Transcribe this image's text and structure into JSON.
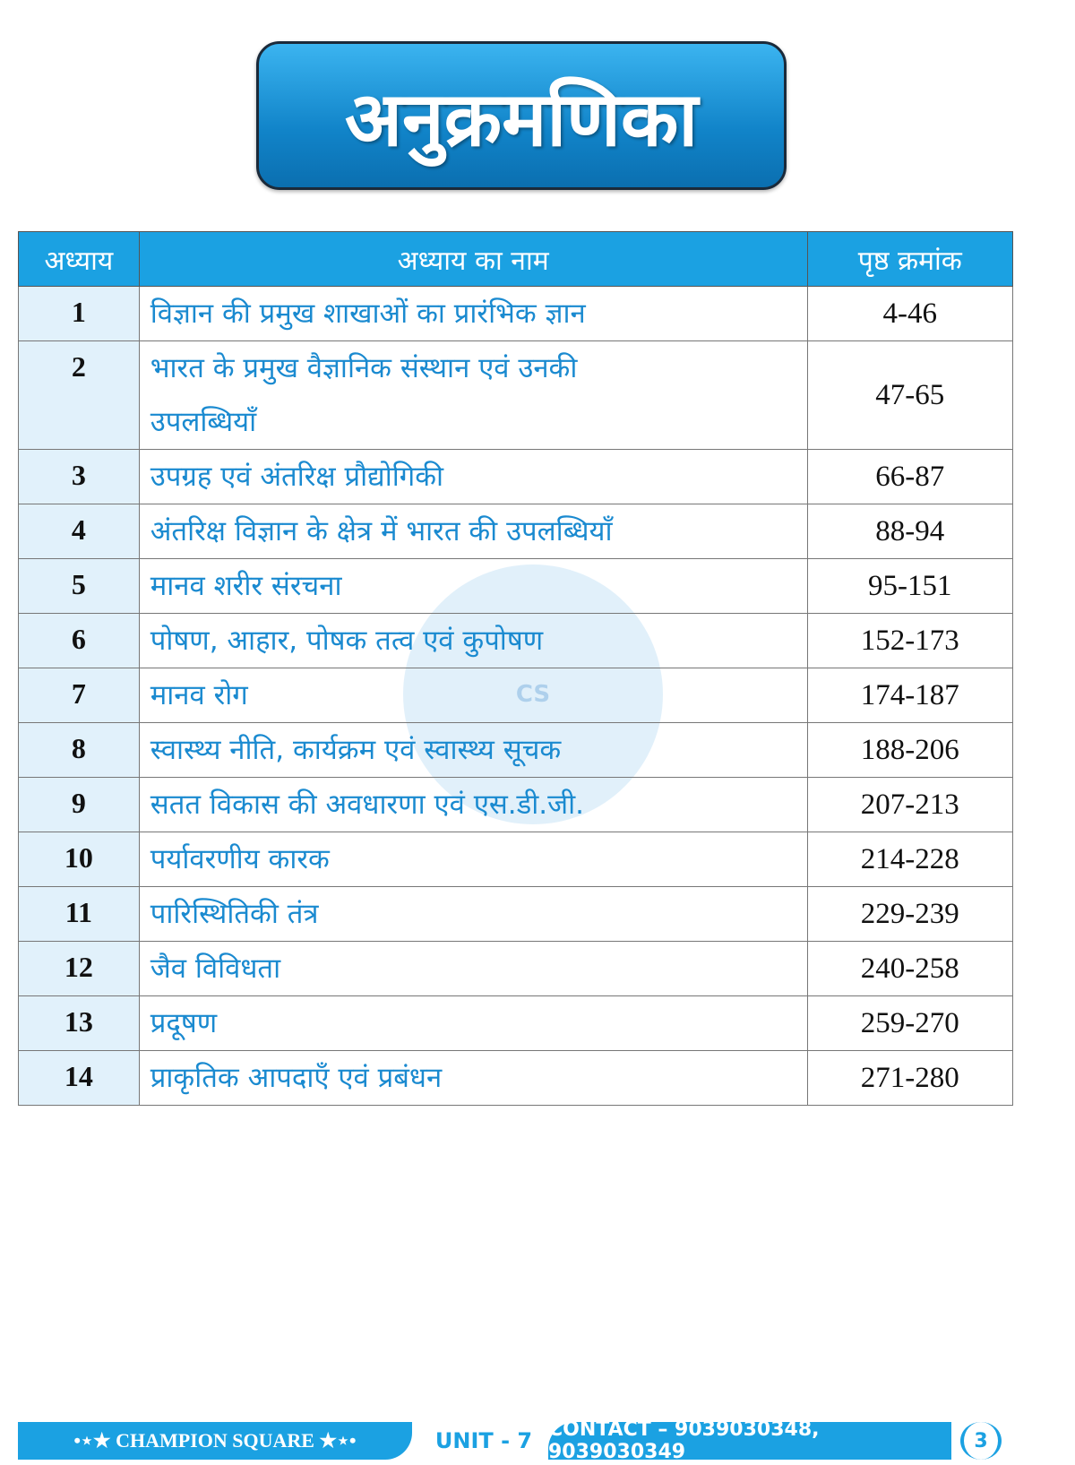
{
  "title": "अनुक्रमणिका",
  "table": {
    "headers": [
      "अध्याय",
      "अध्याय का नाम",
      "पृष्ठ क्रमांक"
    ],
    "rows": [
      {
        "chapter": "1",
        "name": "विज्ञान की प्रमुख शाखाओं का प्रारंभिक ज्ञान",
        "pages": "4-46"
      },
      {
        "chapter": "2",
        "name": "भारत के प्रमुख वैज्ञानिक संस्थान एवं उनकी उपलब्धियाँ",
        "pages": "47-65"
      },
      {
        "chapter": "3",
        "name": "उपग्रह एवं अंतरिक्ष प्रौद्योगिकी",
        "pages": "66-87"
      },
      {
        "chapter": "4",
        "name": "अंतरिक्ष विज्ञान के क्षेत्र में भारत की उपलब्धियाँ",
        "pages": "88-94"
      },
      {
        "chapter": "5",
        "name": "मानव शरीर संरचना",
        "pages": "95-151"
      },
      {
        "chapter": "6",
        "name": "पोषण, आहार, पोषक तत्व एवं कुपोषण",
        "pages": "152-173"
      },
      {
        "chapter": "7",
        "name": "मानव रोग",
        "pages": "174-187"
      },
      {
        "chapter": "8",
        "name": "स्वास्थ्य नीति, कार्यक्रम एवं स्वास्थ्य सूचक",
        "pages": "188-206"
      },
      {
        "chapter": "9",
        "name": "सतत विकास की अवधारणा एवं एस.डी.जी.",
        "pages": "207-213"
      },
      {
        "chapter": "10",
        "name": "पर्यावरणीय कारक",
        "pages": "214-228"
      },
      {
        "chapter": "11",
        "name": "पारिस्थितिकी तंत्र",
        "pages": "229-239"
      },
      {
        "chapter": "12",
        "name": "जैव विविधता",
        "pages": "240-258"
      },
      {
        "chapter": "13",
        "name": "प्रदूषण",
        "pages": "259-270"
      },
      {
        "chapter": "14",
        "name": "प्राकृतिक आपदाएँ एवं प्रबंधन",
        "pages": "271-280"
      }
    ]
  },
  "watermark": "CHAMPION SQUARE",
  "footer": {
    "brand": "•⋆★ CHAMPION SQUARE ★⋆•",
    "unit": "UNIT - 7",
    "contact": "CONTACT – 9039030348, 9039030349",
    "page": "3"
  },
  "colors": {
    "accent": "#1ba1e2",
    "text_blue": "#1a8ad0"
  }
}
